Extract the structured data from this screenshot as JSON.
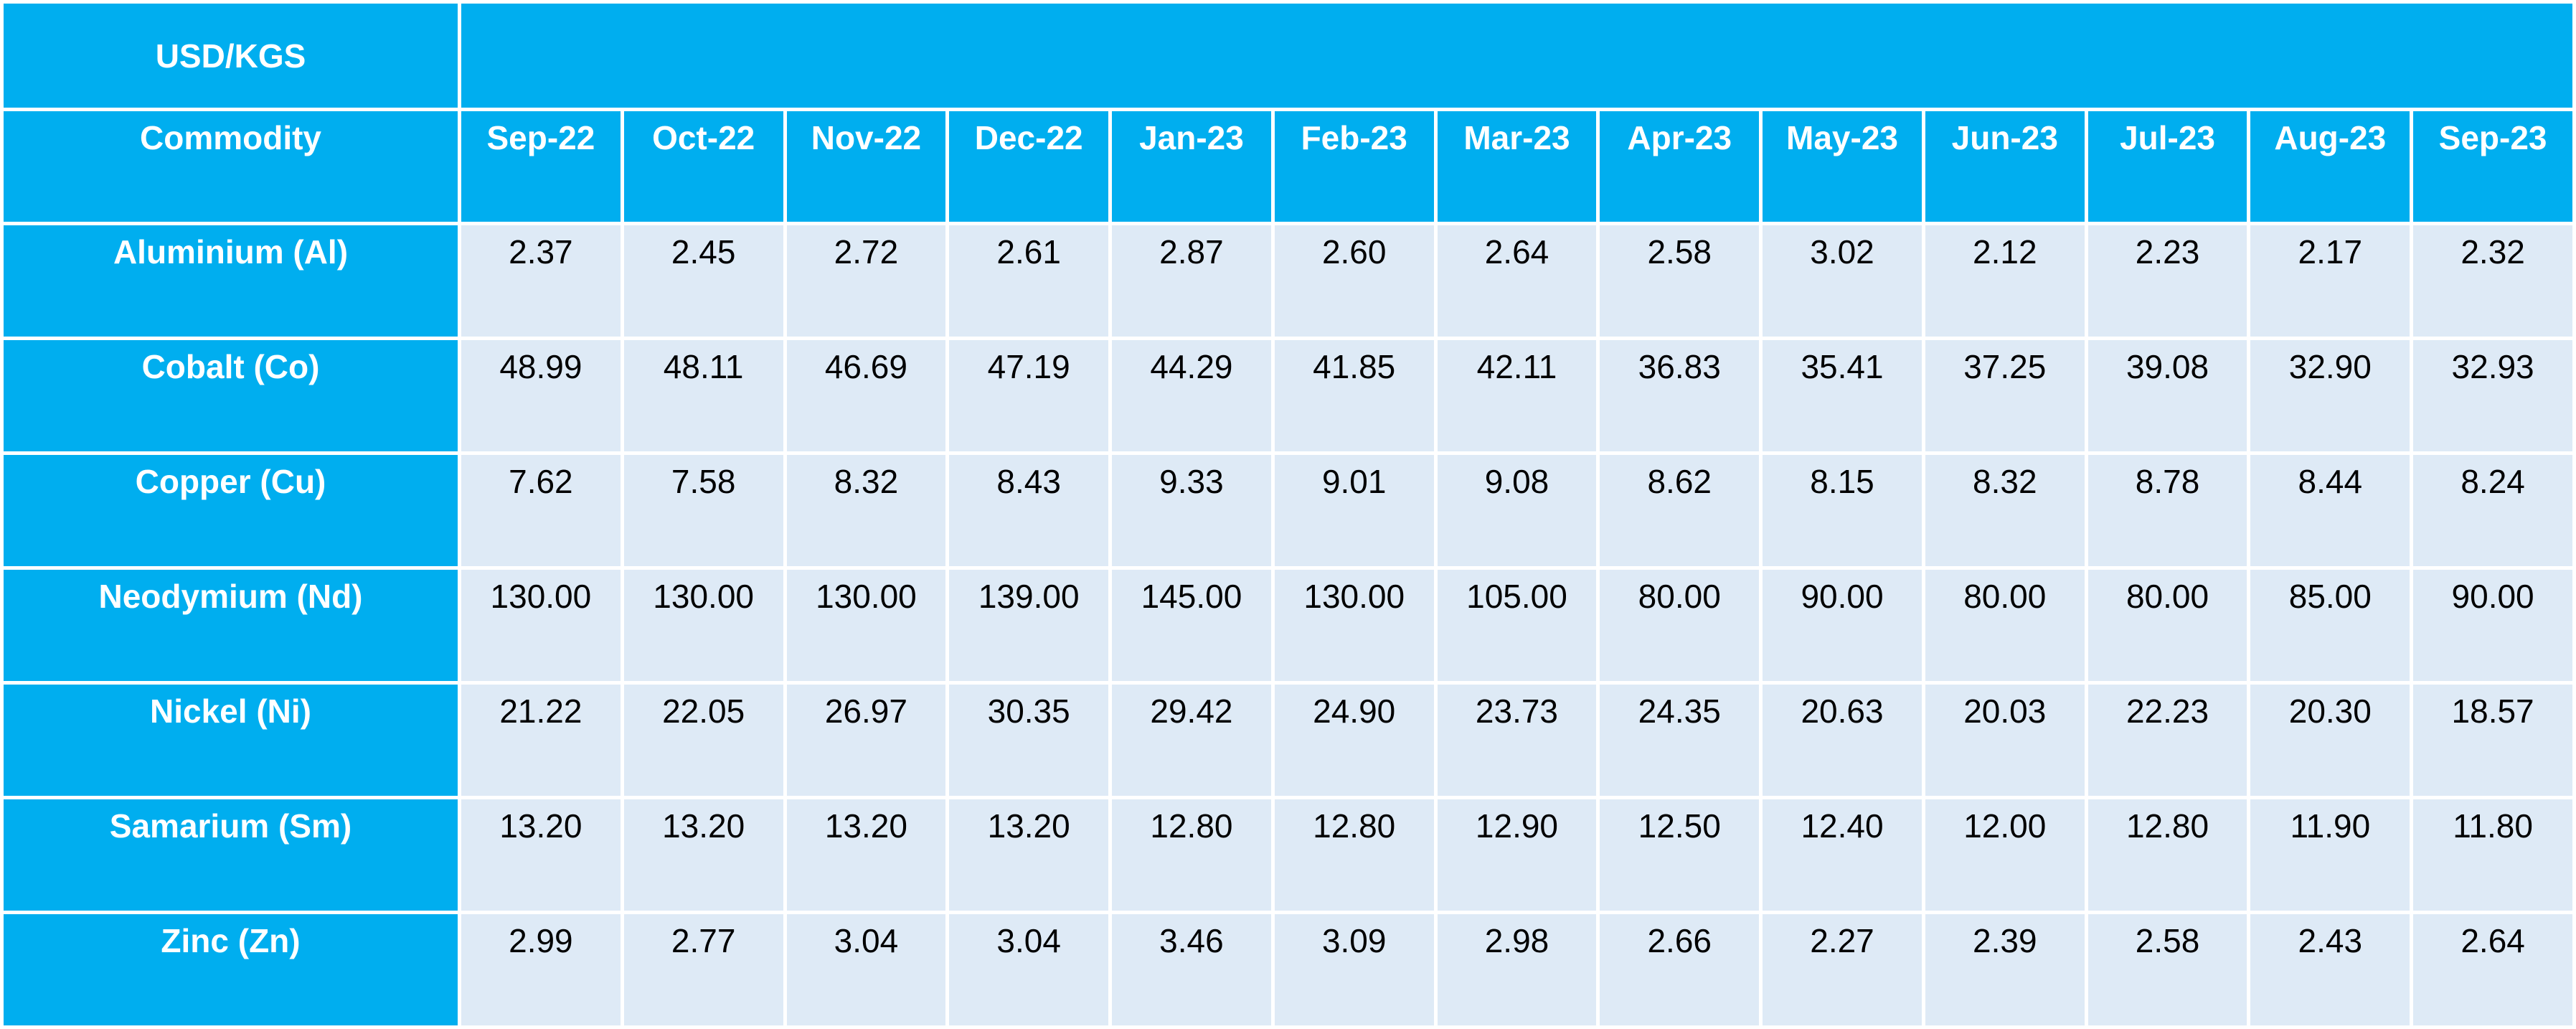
{
  "chart_data": {
    "type": "table",
    "title": "USD/KGS",
    "row_header": "Commodity",
    "columns": [
      "Sep-22",
      "Oct-22",
      "Nov-22",
      "Dec-22",
      "Jan-23",
      "Feb-23",
      "Mar-23",
      "Apr-23",
      "May-23",
      "Jun-23",
      "Jul-23",
      "Aug-23",
      "Sep-23"
    ],
    "rows": [
      {
        "name": "Aluminium (Al)",
        "values": [
          "2.37",
          "2.45",
          "2.72",
          "2.61",
          "2.87",
          "2.60",
          "2.64",
          "2.58",
          "3.02",
          "2.12",
          "2.23",
          "2.17",
          "2.32"
        ]
      },
      {
        "name": "Cobalt (Co)",
        "values": [
          "48.99",
          "48.11",
          "46.69",
          "47.19",
          "44.29",
          "41.85",
          "42.11",
          "36.83",
          "35.41",
          "37.25",
          "39.08",
          "32.90",
          "32.93"
        ]
      },
      {
        "name": "Copper (Cu)",
        "values": [
          "7.62",
          "7.58",
          "8.32",
          "8.43",
          "9.33",
          "9.01",
          "9.08",
          "8.62",
          "8.15",
          "8.32",
          "8.78",
          "8.44",
          "8.24"
        ]
      },
      {
        "name": "Neodymium (Nd)",
        "values": [
          "130.00",
          "130.00",
          "130.00",
          "139.00",
          "145.00",
          "130.00",
          "105.00",
          "80.00",
          "90.00",
          "80.00",
          "80.00",
          "85.00",
          "90.00"
        ]
      },
      {
        "name": "Nickel (Ni)",
        "values": [
          "21.22",
          "22.05",
          "26.97",
          "30.35",
          "29.42",
          "24.90",
          "23.73",
          "24.35",
          "20.63",
          "20.03",
          "22.23",
          "20.30",
          "18.57"
        ]
      },
      {
        "name": "Samarium (Sm)",
        "values": [
          "13.20",
          "13.20",
          "13.20",
          "13.20",
          "12.80",
          "12.80",
          "12.90",
          "12.50",
          "12.40",
          "12.00",
          "12.80",
          "11.90",
          "11.80"
        ]
      },
      {
        "name": "Zinc (Zn)",
        "values": [
          "2.99",
          "2.77",
          "3.04",
          "3.04",
          "3.46",
          "3.09",
          "2.98",
          "2.66",
          "2.27",
          "2.39",
          "2.58",
          "2.43",
          "2.64"
        ]
      }
    ]
  },
  "colors": {
    "header_bg": "#00aeef",
    "cell_bg": "#deeaf6",
    "header_text": "#ffffff",
    "cell_text": "#000000",
    "grid": "#ffffff"
  }
}
